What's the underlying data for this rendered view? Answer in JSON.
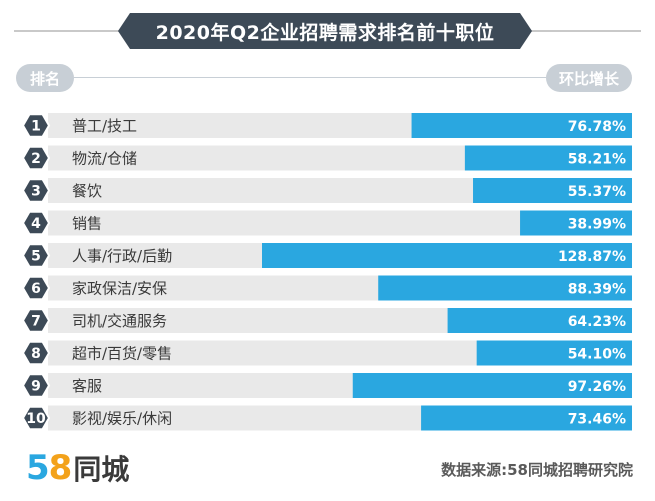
{
  "header": {
    "title": "2020年Q2企业招聘需求排名前十职位",
    "rank_label": "排名",
    "growth_label": "环比增长"
  },
  "footer": {
    "logo_5": "5",
    "logo_8": "8",
    "logo_text": "同城",
    "source": "数据来源:58同城招聘研究院"
  },
  "colors": {
    "bar": "#2aa7e0",
    "track": "#e9e9e9",
    "badge": "#3d4a57",
    "text": "#3a3a3a"
  },
  "chart_data": {
    "type": "bar",
    "title": "2020年Q2企业招聘需求排名前十职位",
    "orientation": "horizontal",
    "ranks": [
      "1",
      "2",
      "3",
      "4",
      "5",
      "6",
      "7",
      "8",
      "9",
      "10"
    ],
    "categories": [
      "普工/技工",
      "物流/仓储",
      "餐饮",
      "销售",
      "人事/行政/后勤",
      "家政保洁/安保",
      "司机/交通服务",
      "超市/百货/零售",
      "客服",
      "影视/娱乐/休闲"
    ],
    "values": [
      76.78,
      58.21,
      55.37,
      38.99,
      128.87,
      88.39,
      64.23,
      54.1,
      97.26,
      73.46
    ],
    "value_labels": [
      "76.78%",
      "58.21%",
      "55.37%",
      "38.99%",
      "128.87%",
      "88.39%",
      "64.23%",
      "54.10%",
      "97.26%",
      "73.46%"
    ],
    "unit": "%"
  }
}
